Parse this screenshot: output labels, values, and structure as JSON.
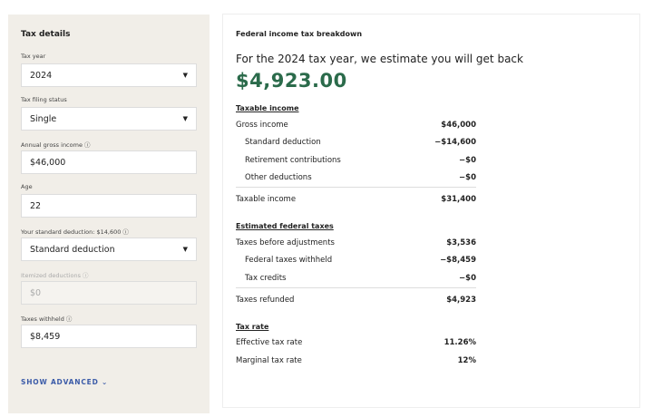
{
  "left": {
    "title": "Tax details",
    "tax_year": {
      "label": "Tax year",
      "value": "2024"
    },
    "filing_status": {
      "label": "Tax filing status",
      "value": "Single"
    },
    "gross_income": {
      "label": "Annual gross income ⓘ",
      "value": "$46,000"
    },
    "age": {
      "label": "Age",
      "value": "22"
    },
    "deduction": {
      "label": "Your standard deduction: $14,600 ⓘ",
      "value": "Standard deduction"
    },
    "itemized": {
      "label": "Itemized deductions ⓘ",
      "placeholder": "$0"
    },
    "withheld": {
      "label": "Taxes withheld ⓘ",
      "value": "$8,459"
    },
    "show_advanced": "SHOW ADVANCED ⌄"
  },
  "right": {
    "title": "Federal income tax breakdown",
    "estimate": "For the 2024 tax year, we estimate you will get back",
    "amount": "$4,923.00",
    "amount_color": "#2b6b4b",
    "taxable": {
      "heading": "Taxable income",
      "rows": [
        {
          "label": "Gross income",
          "value": "$46,000"
        },
        {
          "label": "Standard deduction",
          "value": "−$14,600"
        },
        {
          "label": "Retirement contributions",
          "value": "−$0"
        },
        {
          "label": "Other deductions",
          "value": "−$0"
        },
        {
          "label": "Taxable income",
          "value": "$31,400"
        }
      ]
    },
    "federal": {
      "heading": "Estimated federal taxes",
      "rows": [
        {
          "label": "Taxes before adjustments",
          "value": "$3,536"
        },
        {
          "label": "Federal taxes withheld",
          "value": "−$8,459"
        },
        {
          "label": "Tax credits",
          "value": "−$0"
        },
        {
          "label": "Taxes refunded",
          "value": "$4,923"
        }
      ]
    },
    "rate": {
      "heading": "Tax rate",
      "rows": [
        {
          "label": "Effective tax rate",
          "value": "11.26%"
        },
        {
          "label": "Marginal tax rate",
          "value": "12%"
        }
      ]
    }
  }
}
